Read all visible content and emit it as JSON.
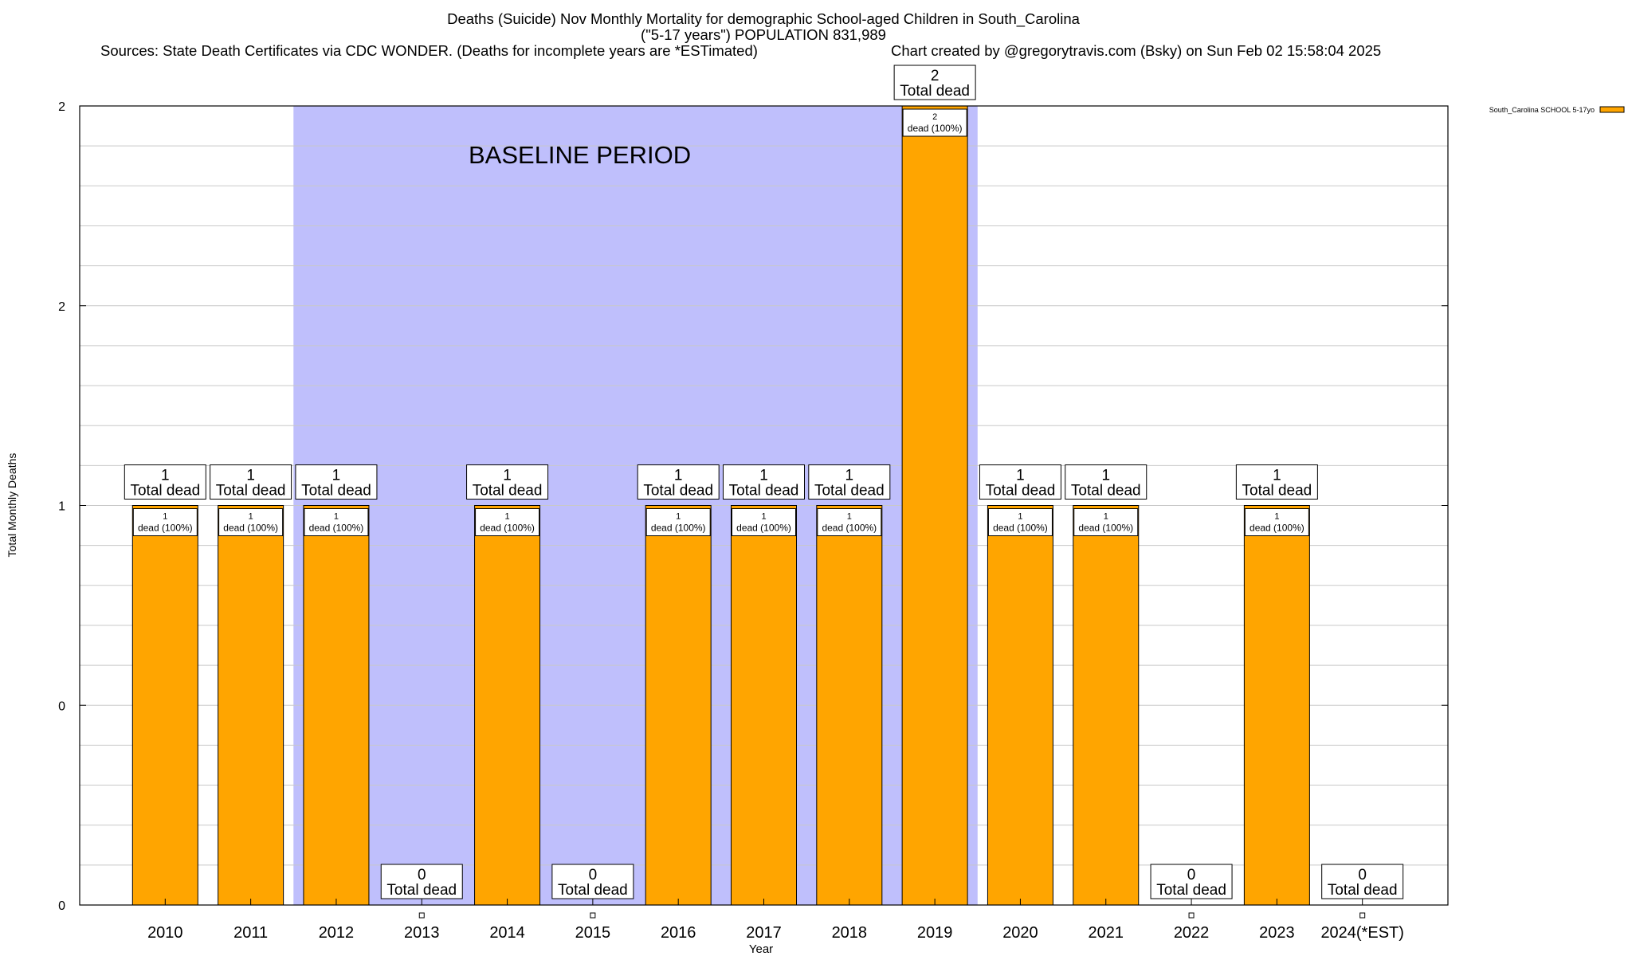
{
  "header": {
    "title_line1": "Deaths (Suicide) Nov Monthly Mortality for demographic School-aged Children in South_Carolina",
    "title_line2": "(\"5-17 years\") POPULATION 831,989",
    "sources": "Sources: State Death Certificates via CDC WONDER. (Deaths for incomplete years are *ESTimated)",
    "credit": "Chart created by @gregorytravis.com (Bsky) on Sun Feb 02 15:58:04 2025"
  },
  "chart_data": {
    "type": "bar",
    "xlabel": "Year",
    "ylabel": "Total Monthly Deaths",
    "categories": [
      "2010",
      "2011",
      "2012",
      "2013",
      "2014",
      "2015",
      "2016",
      "2017",
      "2018",
      "2019",
      "2020",
      "2021",
      "2022",
      "2023",
      "2024(*EST)"
    ],
    "series": [
      {
        "name": "South_Carolina SCHOOL 5-17yo",
        "values": [
          1,
          1,
          1,
          0,
          1,
          0,
          1,
          1,
          1,
          2,
          1,
          1,
          0,
          1,
          0
        ]
      }
    ],
    "ylim": [
      0,
      2
    ],
    "y_tick_labels": [
      "0",
      "0",
      "1",
      "2",
      "2"
    ],
    "total_label_suffix": "Total dead",
    "bar_label_suffix": "dead (100%)",
    "baseline_annotation": {
      "text": "BASELINE PERIOD",
      "from": "2012",
      "to": "2019"
    },
    "grid": true,
    "legend_position": "top-right",
    "colors": {
      "bar": "#ffa500",
      "baseline": "#bfbffc",
      "edge": "#000000"
    }
  }
}
